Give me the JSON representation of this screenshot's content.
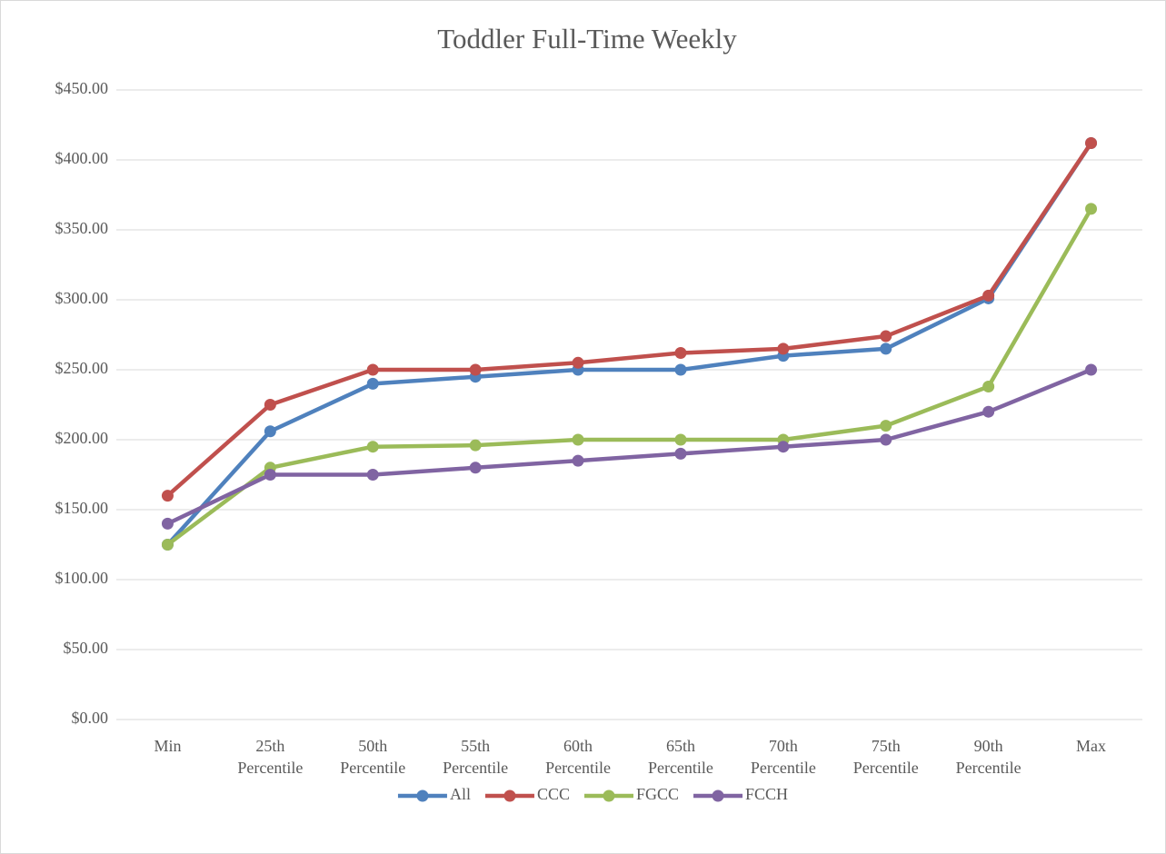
{
  "chart_data": {
    "type": "line",
    "title": "Toddler Full-Time Weekly",
    "categories": [
      "Min",
      "25th Percentile",
      "50th Percentile",
      "55th Percentile",
      "60th Percentile",
      "65th Percentile",
      "70th Percentile",
      "75th Percentile",
      "90th Percentile",
      "Max"
    ],
    "series": [
      {
        "name": "All",
        "color": "#4f81bd",
        "values": [
          125,
          206,
          240,
          245,
          250,
          250,
          260,
          265,
          301,
          412
        ]
      },
      {
        "name": "CCC",
        "color": "#c0504d",
        "values": [
          160,
          225,
          250,
          250,
          255,
          262,
          265,
          274,
          303,
          412
        ]
      },
      {
        "name": "FGCC",
        "color": "#9bbb59",
        "values": [
          125,
          180,
          195,
          196,
          200,
          200,
          200,
          210,
          238,
          365
        ]
      },
      {
        "name": "FCCH",
        "color": "#8064a2",
        "values": [
          140,
          175,
          175,
          180,
          185,
          190,
          195,
          200,
          220,
          250
        ]
      }
    ],
    "ylim": [
      0,
      450
    ],
    "yticks": [
      {
        "value": 0,
        "label": "$0.00"
      },
      {
        "value": 50,
        "label": "$50.00"
      },
      {
        "value": 100,
        "label": "$100.00"
      },
      {
        "value": 150,
        "label": "$150.00"
      },
      {
        "value": 200,
        "label": "$200.00"
      },
      {
        "value": 250,
        "label": "$250.00"
      },
      {
        "value": 300,
        "label": "$300.00"
      },
      {
        "value": 350,
        "label": "$350.00"
      },
      {
        "value": 400,
        "label": "$400.00"
      },
      {
        "value": 450,
        "label": "$450.00"
      }
    ],
    "grid": true,
    "legend": "bottom"
  }
}
